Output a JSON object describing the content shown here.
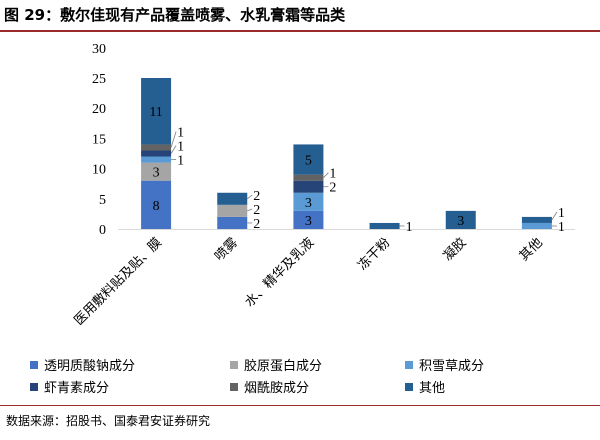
{
  "title": "图 29：敷尔佳现有产品覆盖喷雾、水乳膏霜等品类",
  "source": "数据来源：招股书、国泰君安证券研究",
  "chart_data": {
    "type": "bar",
    "stacked": true,
    "categories": [
      "医用敷料贴及贴、膜",
      "喷雾",
      "水、精华及乳液",
      "冻干粉",
      "凝胶",
      "其他"
    ],
    "ylim": [
      0,
      30
    ],
    "yticks": [
      0,
      5,
      10,
      15,
      20,
      25,
      30
    ],
    "grid": false,
    "legend": "bottom",
    "series": [
      {
        "name": "透明质酸钠成分",
        "color": "#4472c4",
        "values": [
          8,
          2,
          3,
          0,
          0,
          0
        ]
      },
      {
        "name": "胶原蛋白成分",
        "color": "#a5a5a5",
        "values": [
          3,
          2,
          0,
          0,
          0,
          0
        ]
      },
      {
        "name": "积雪草成分",
        "color": "#5b9bd5",
        "values": [
          1,
          0,
          3,
          0,
          0,
          1
        ]
      },
      {
        "name": "虾青素成分",
        "color": "#264478",
        "values": [
          1,
          0,
          2,
          0,
          0,
          0
        ]
      },
      {
        "name": "烟酰胺成分",
        "color": "#636363",
        "values": [
          1,
          0,
          1,
          0,
          0,
          0
        ]
      },
      {
        "name": "其他",
        "color": "#255e91",
        "values": [
          11,
          2,
          5,
          1,
          3,
          1
        ]
      }
    ]
  }
}
